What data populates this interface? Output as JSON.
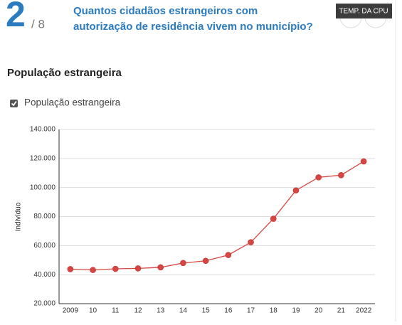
{
  "header": {
    "step": "2",
    "total": "/ 8",
    "question_line1": "Quantos cidadãos estrangeiros com",
    "question_line2": "autorização de residência vivem no município?",
    "badge": "TEMP. DA CPU"
  },
  "chart_data": {
    "type": "line",
    "title": "População estrangeira",
    "y_label": "Indivíduo",
    "categories": [
      "2009",
      "10",
      "11",
      "12",
      "13",
      "14",
      "15",
      "16",
      "17",
      "18",
      "19",
      "20",
      "21",
      "2022"
    ],
    "series": [
      {
        "name": "População estrangeira",
        "color": "#d64541",
        "values": [
          43800,
          43200,
          44000,
          44300,
          45000,
          48000,
          49500,
          53500,
          62300,
          78500,
          98000,
          107000,
          108500,
          118000
        ]
      }
    ],
    "ylim": [
      20000,
      140000
    ],
    "yticks": [
      {
        "value": 20000,
        "label": "20.000"
      },
      {
        "value": 40000,
        "label": "40.000"
      },
      {
        "value": 60000,
        "label": "60.000"
      },
      {
        "value": 80000,
        "label": "80.000"
      },
      {
        "value": 100000,
        "label": "100.000"
      },
      {
        "value": 120000,
        "label": "120.000"
      },
      {
        "value": 140000,
        "label": "140.000"
      }
    ],
    "grid": true
  }
}
